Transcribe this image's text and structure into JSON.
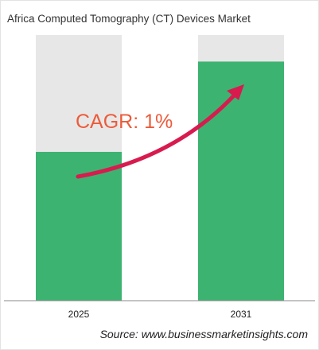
{
  "title": "Africa Computed Tomography (CT) Devices Market",
  "source": "Source: www.businessmarketinsights.com",
  "colors": {
    "bar_fill": "#3cb371",
    "bar_track": "#e8e7e7",
    "arrow": "#d81b4f",
    "cagr_text": "#ec5b3a",
    "axis": "#888888"
  },
  "chart_data": {
    "type": "bar",
    "categories": [
      "2025",
      "2031"
    ],
    "values": [
      0.56,
      0.9
    ],
    "value_scale": "relative fraction of full column (no axis values printed)",
    "ylim": [
      0,
      1
    ],
    "grid": false,
    "annotation": {
      "text": "CAGR: 1%",
      "shape": "curved-arrow",
      "direction": "up-right"
    }
  }
}
